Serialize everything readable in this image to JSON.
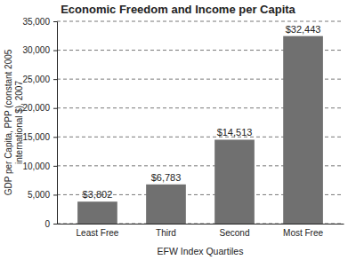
{
  "chart_data": {
    "type": "bar",
    "title": "Economic Freedom and Income per Capita",
    "xlabel": "EFW Index Quartiles",
    "ylabel": [
      "GDP per Capita, PPP (constant 2005",
      "international $), 2007"
    ],
    "categories": [
      "Least Free",
      "Third",
      "Second",
      "Most Free"
    ],
    "values": [
      3802,
      6783,
      14513,
      32443
    ],
    "value_labels": [
      "$3,802",
      "$6,783",
      "$14,513",
      "$32,443"
    ],
    "data_labels": true,
    "color": "#707070",
    "ylim": [
      0,
      35000
    ],
    "yticks": [
      0,
      {
        "value": 5000,
        "label": "5,000"
      },
      {
        "value": 10000,
        "label": "10,000"
      },
      {
        "value": 15000,
        "label": "15,000"
      },
      {
        "value": 20000,
        "label": "20,000"
      },
      {
        "value": 25000,
        "label": "25,000"
      },
      {
        "value": 30000,
        "label": "30,000"
      },
      {
        "value": 35000,
        "label": "35,000"
      }
    ],
    "grid": true
  }
}
